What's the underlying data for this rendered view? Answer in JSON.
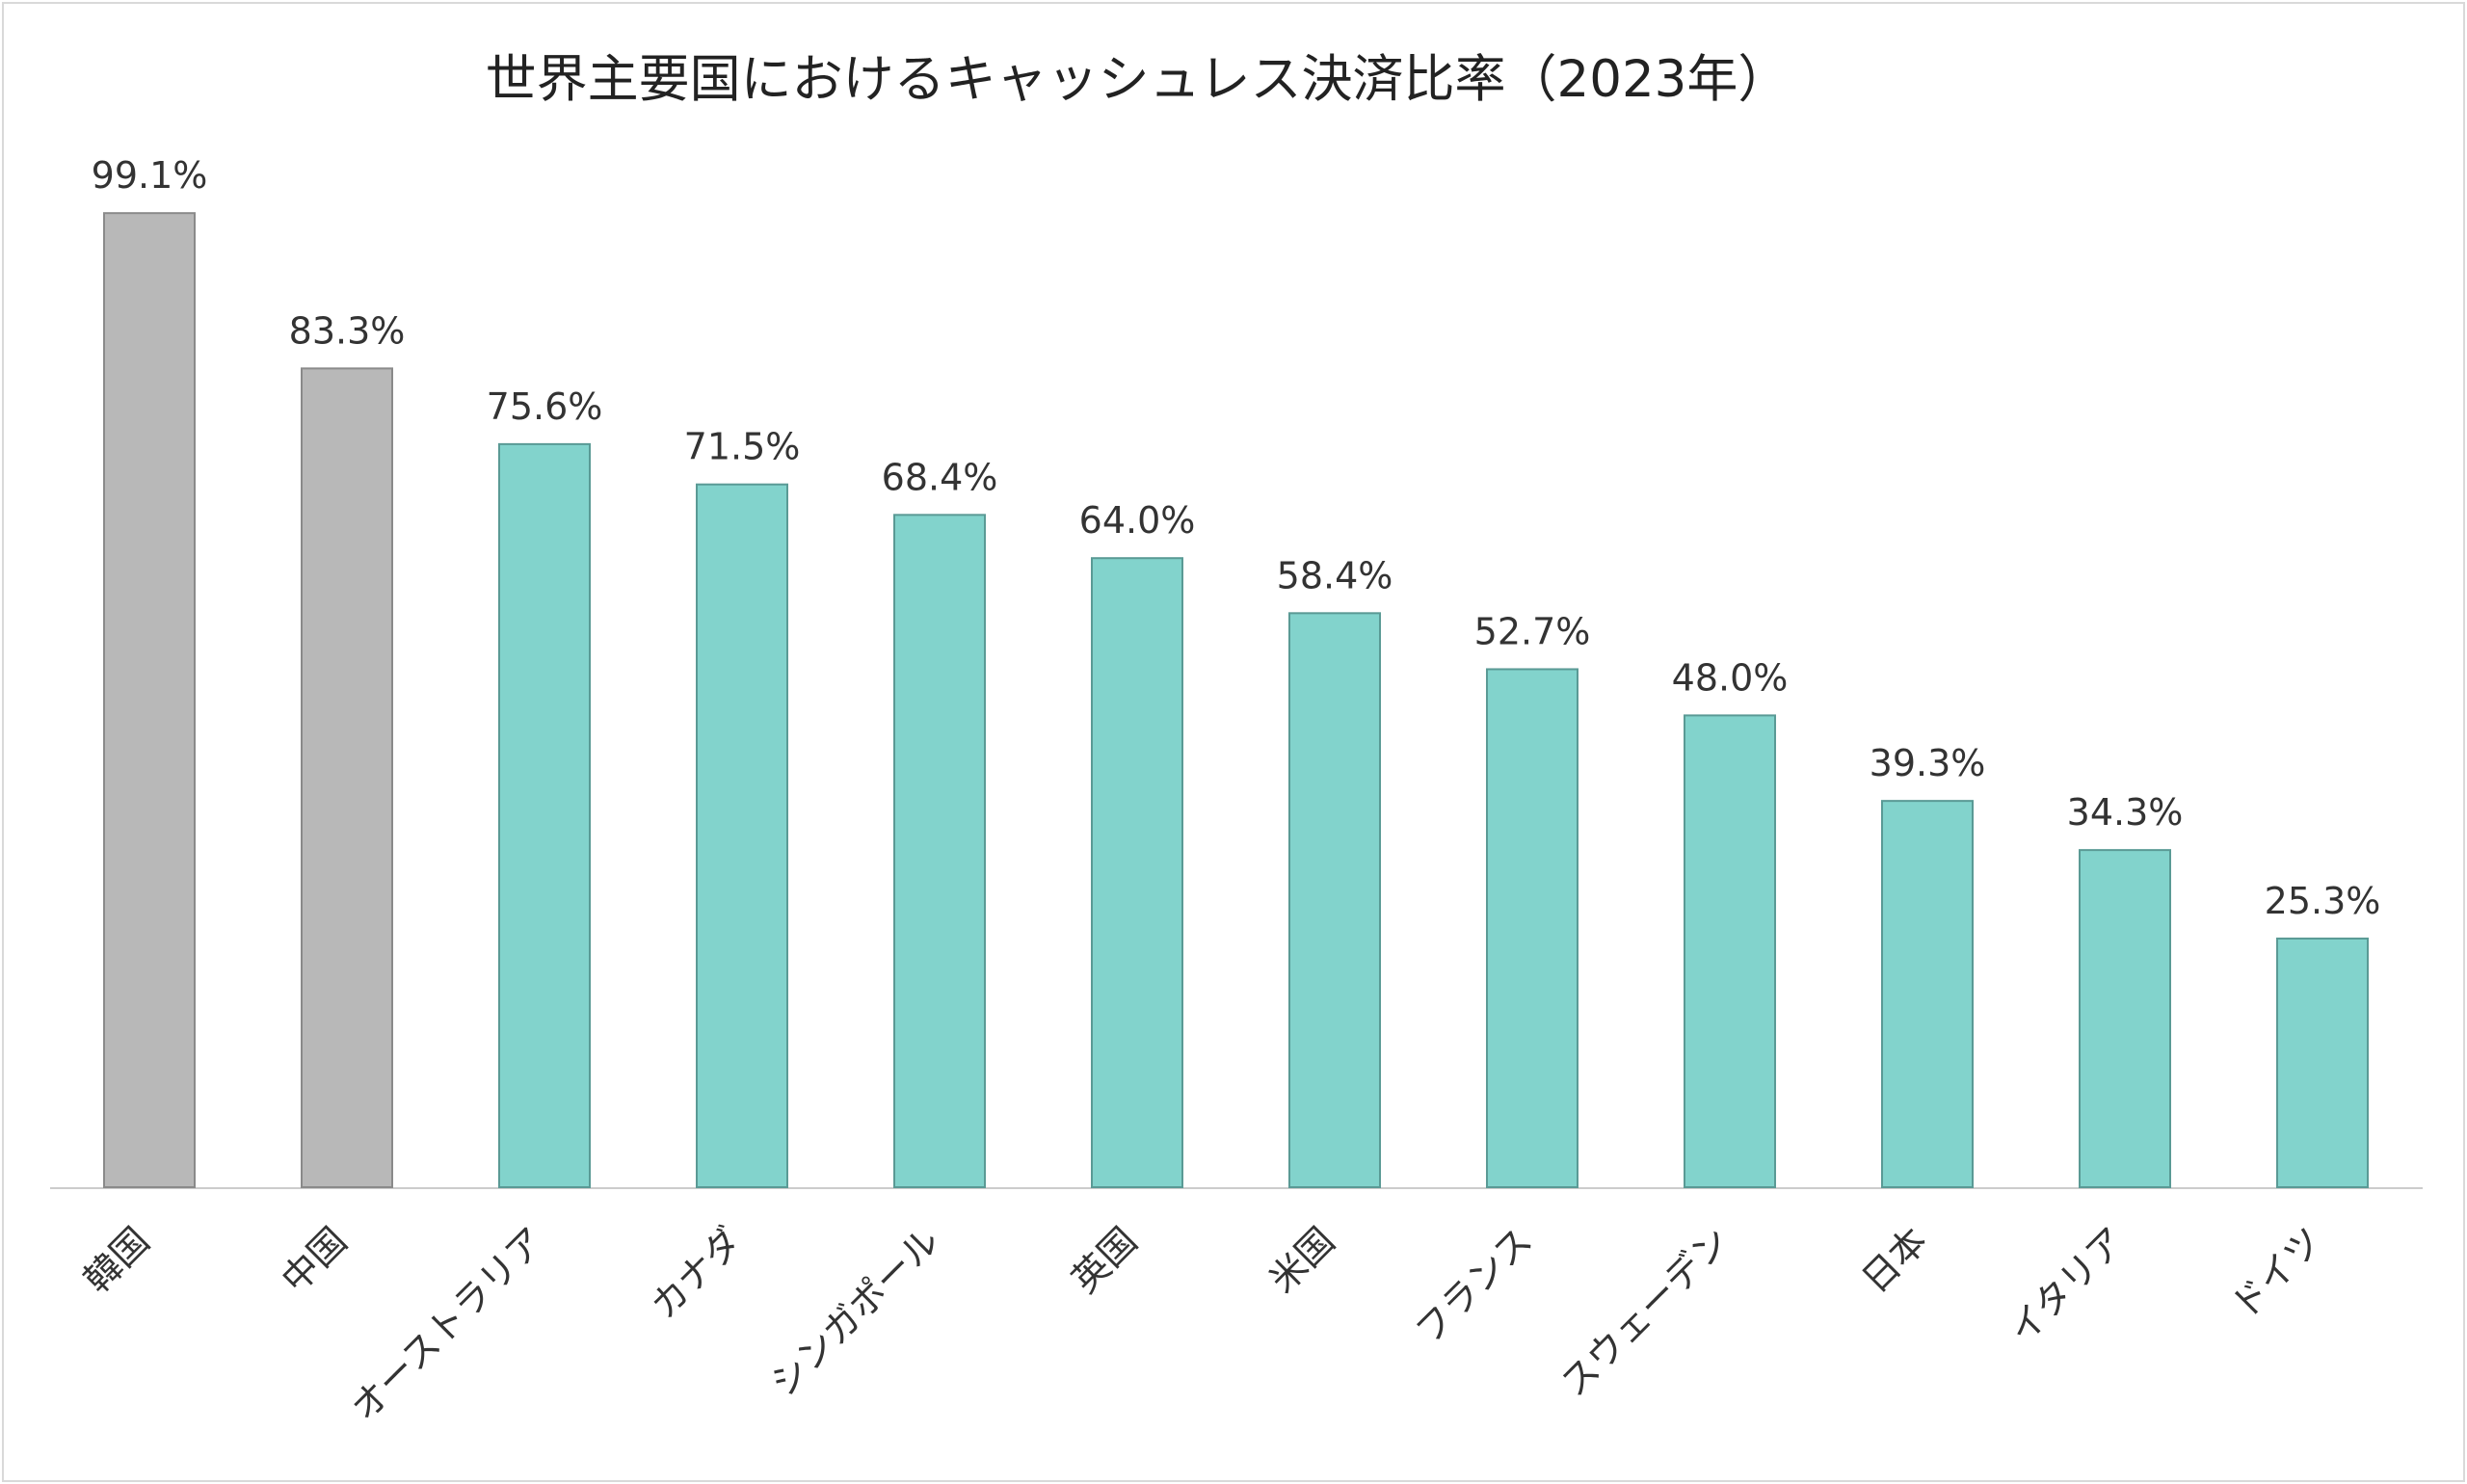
{
  "chart_data": {
    "type": "bar",
    "title": "世界主要国におけるキャッシュレス決済比率（2023年）",
    "xlabel": "",
    "ylabel": "",
    "ylim": [
      0,
      100
    ],
    "grid": false,
    "categories": [
      "韓国",
      "中国",
      "オーストラリア",
      "カナダ",
      "シンガポール",
      "英国",
      "米国",
      "フランス",
      "スウェーデン",
      "日本",
      "イタリア",
      "ドイツ"
    ],
    "values": [
      99.1,
      83.3,
      75.6,
      71.5,
      68.4,
      64.0,
      58.4,
      52.7,
      48.0,
      39.3,
      34.3,
      25.3
    ],
    "value_labels": [
      "99.1%",
      "83.3%",
      "75.6%",
      "71.5%",
      "68.4%",
      "64.0%",
      "58.4%",
      "52.7%",
      "48.0%",
      "39.3%",
      "34.3%",
      "25.3%"
    ],
    "highlight_categories": [
      "韓国",
      "中国"
    ],
    "colors": {
      "highlight": "#b8b8b8",
      "highlight_edge": "#8a8a8a",
      "default": "#82d3cc",
      "default_edge": "#5a9a95",
      "axis": "#cccccc"
    }
  }
}
